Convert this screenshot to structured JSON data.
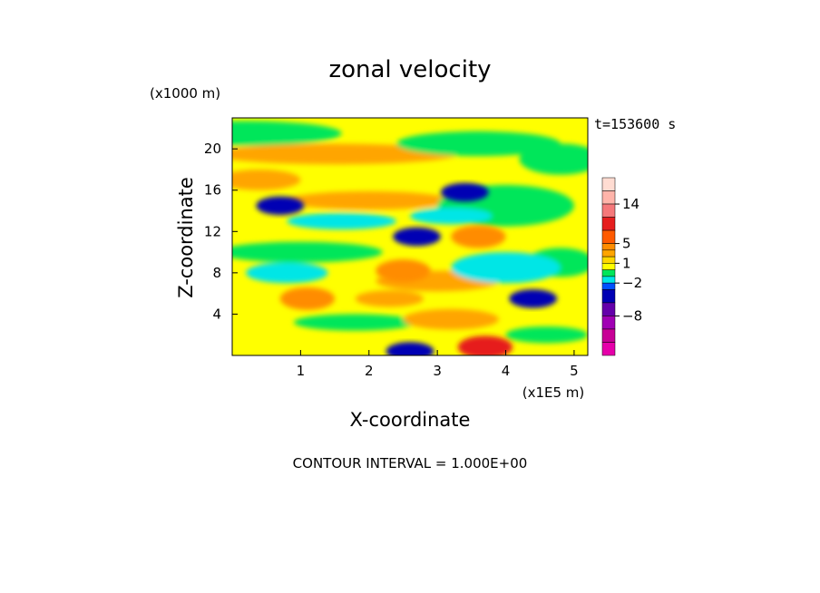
{
  "chart_data": {
    "type": "heatmap",
    "title": "zonal velocity",
    "xlabel": "X-coordinate",
    "ylabel": "Z-coordinate",
    "x_unit": "(x1E5 m)",
    "y_unit": "(x1000 m)",
    "time_label": "t=153600 s",
    "footer": "CONTOUR INTERVAL = 1.000E+00",
    "xlim": [
      0,
      5.2
    ],
    "ylim": [
      0,
      23
    ],
    "x_ticks": [
      "1",
      "2",
      "3",
      "4",
      "5"
    ],
    "x_tick_values": [
      1,
      2,
      3,
      4,
      5
    ],
    "y_ticks": [
      "4",
      "8",
      "12",
      "16",
      "20"
    ],
    "y_tick_values": [
      4,
      8,
      12,
      16,
      20
    ],
    "colorbar": {
      "tick_labels": [
        "14",
        "5",
        "1",
        "−2",
        "−8"
      ],
      "tick_values": [
        14,
        5,
        1,
        -2,
        -8
      ],
      "levels": [
        {
          "min": 17,
          "max": 20,
          "color": "#ffdcd2"
        },
        {
          "min": 14,
          "max": 17,
          "color": "#ffb4aa"
        },
        {
          "min": 11,
          "max": 14,
          "color": "#f5787a"
        },
        {
          "min": 8,
          "max": 11,
          "color": "#e61e1e"
        },
        {
          "min": 5,
          "max": 8,
          "color": "#ff5a00"
        },
        {
          "min": 3,
          "max": 5,
          "color": "#ff8c00"
        },
        {
          "min": 2,
          "max": 3,
          "color": "#ffa500"
        },
        {
          "min": 1,
          "max": 2,
          "color": "#ffd700"
        },
        {
          "min": 0,
          "max": 1,
          "color": "#ffff00"
        },
        {
          "min": -1,
          "max": 0,
          "color": "#00e65a"
        },
        {
          "min": -2,
          "max": -1,
          "color": "#00e6e6"
        },
        {
          "min": -4,
          "max": -2,
          "color": "#0050ff"
        },
        {
          "min": -6,
          "max": -4,
          "color": "#0000b4"
        },
        {
          "min": -8,
          "max": -6,
          "color": "#6400aa"
        },
        {
          "min": -10,
          "max": -8,
          "color": "#a000b4"
        },
        {
          "min": -12,
          "max": -10,
          "color": "#c80096"
        },
        {
          "min": -14,
          "max": -12,
          "color": "#e600aa"
        }
      ]
    },
    "regions": [
      {
        "x": 2.6,
        "y": 0.4,
        "value": -5
      },
      {
        "x": 3.7,
        "y": 0.8,
        "value": 8
      },
      {
        "x": 0.7,
        "y": 14.5,
        "value": -5
      },
      {
        "x": 2.7,
        "y": 11.5,
        "value": -5
      },
      {
        "x": 4.4,
        "y": 5.5,
        "value": -5
      },
      {
        "x": 3.4,
        "y": 15.8,
        "value": -5
      },
      {
        "x": 1.1,
        "y": 5.5,
        "value": 3
      },
      {
        "x": 2.5,
        "y": 8.2,
        "value": 3
      },
      {
        "x": 3.6,
        "y": 11.5,
        "value": 3
      }
    ]
  }
}
